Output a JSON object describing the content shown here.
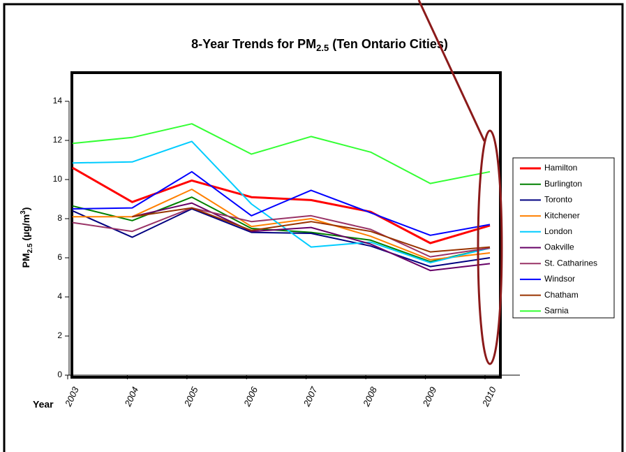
{
  "chart_data": {
    "type": "line",
    "title_parts": [
      "8-Year Trends for PM",
      "2.5",
      "(Ten Ontario Cities)"
    ],
    "y_label_parts": [
      "PM",
      "2.5",
      "(µg/m",
      "3",
      ")"
    ],
    "x_label": "Year",
    "categories": [
      "2003",
      "2004",
      "2005",
      "2006",
      "2007",
      "2008",
      "2009",
      "2010"
    ],
    "ylim": [
      0,
      14
    ],
    "yticks": [
      0,
      2,
      4,
      6,
      8,
      10,
      12,
      14
    ],
    "grid": false,
    "legend": "right",
    "series": [
      {
        "name": "Hamilton",
        "color": "#ff0000",
        "width": 3,
        "values": [
          10.6,
          8.85,
          9.95,
          9.1,
          8.95,
          8.35,
          6.75,
          7.65
        ]
      },
      {
        "name": "Burlington",
        "color": "#008000",
        "width": 2,
        "values": [
          8.65,
          7.9,
          9.1,
          7.5,
          7.3,
          6.9,
          5.8,
          6.5
        ]
      },
      {
        "name": "Toronto",
        "color": "#000080",
        "width": 2,
        "values": [
          8.4,
          7.05,
          8.5,
          7.3,
          7.25,
          6.6,
          5.55,
          6.0
        ]
      },
      {
        "name": "Kitchener",
        "color": "#ff8000",
        "width": 2,
        "values": [
          8.1,
          8.1,
          9.5,
          7.6,
          8.0,
          7.1,
          5.9,
          6.25
        ]
      },
      {
        "name": "London",
        "color": "#00ccff",
        "width": 2,
        "values": [
          10.85,
          10.9,
          11.95,
          8.75,
          6.55,
          6.8,
          5.75,
          6.5
        ]
      },
      {
        "name": "Oakville",
        "color": "#660066",
        "width": 2,
        "values": [
          null,
          8.1,
          8.8,
          7.35,
          7.55,
          6.7,
          5.35,
          5.7
        ]
      },
      {
        "name": "St. Catharines",
        "color": "#993366",
        "width": 2,
        "values": [
          7.8,
          7.35,
          8.55,
          7.85,
          8.15,
          7.45,
          6.05,
          6.5
        ]
      },
      {
        "name": "Windsor",
        "color": "#0000ff",
        "width": 2,
        "values": [
          8.5,
          8.55,
          10.4,
          8.15,
          9.45,
          8.3,
          7.15,
          7.7
        ]
      },
      {
        "name": "Chatham",
        "color": "#993300",
        "width": 2,
        "values": [
          null,
          8.1,
          8.55,
          7.4,
          7.85,
          7.35,
          6.3,
          6.55
        ]
      },
      {
        "name": "Sarnia",
        "color": "#33ff33",
        "width": 2,
        "values": [
          11.85,
          12.15,
          12.85,
          11.3,
          12.2,
          11.4,
          9.8,
          10.4
        ]
      }
    ]
  }
}
